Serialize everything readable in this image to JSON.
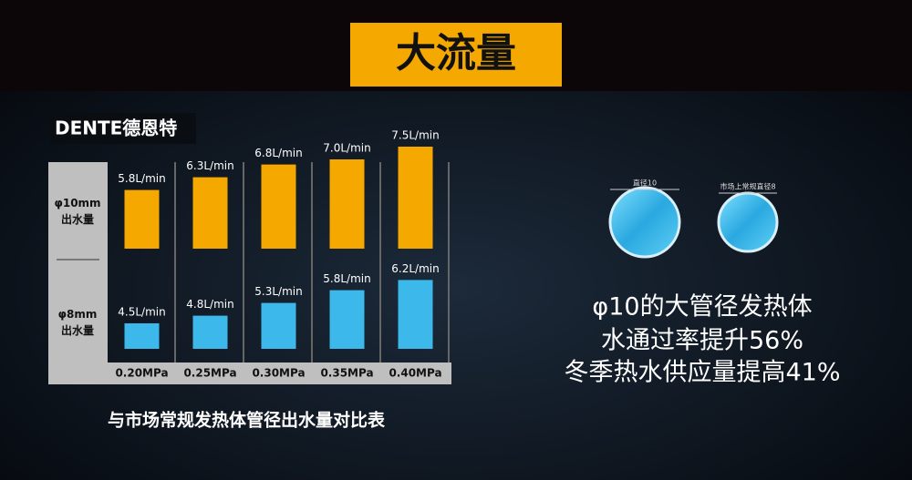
{
  "header": {
    "title": "大流量"
  },
  "brand": "DENTE德恩特",
  "chart_data": {
    "type": "bar",
    "title": "与市场常规发热体管径出水量对比表",
    "categories": [
      "0.20MPa",
      "0.25MPa",
      "0.30MPa",
      "0.35MPa",
      "0.40MPa"
    ],
    "series": [
      {
        "name": "φ10mm\n出水量",
        "color": "#f5a800",
        "values": [
          5.8,
          6.3,
          6.8,
          7.0,
          7.5
        ],
        "value_labels": [
          "5.8L/min",
          "6.3L/min",
          "6.8L/min",
          "7.0L/min",
          "7.5L/min"
        ]
      },
      {
        "name": "φ8mm\n出水量",
        "color": "#3db8ea",
        "values": [
          4.5,
          4.8,
          5.3,
          5.8,
          6.2
        ],
        "value_labels": [
          "4.5L/min",
          "4.8L/min",
          "5.3L/min",
          "5.8L/min",
          "6.2L/min"
        ]
      }
    ]
  },
  "pipes": {
    "large_label": "直径10",
    "small_label": "市场上常规直径8"
  },
  "claims": [
    "φ10的大管径发热体",
    "水通过率提升56%",
    "冬季热水供应量提高41%"
  ]
}
